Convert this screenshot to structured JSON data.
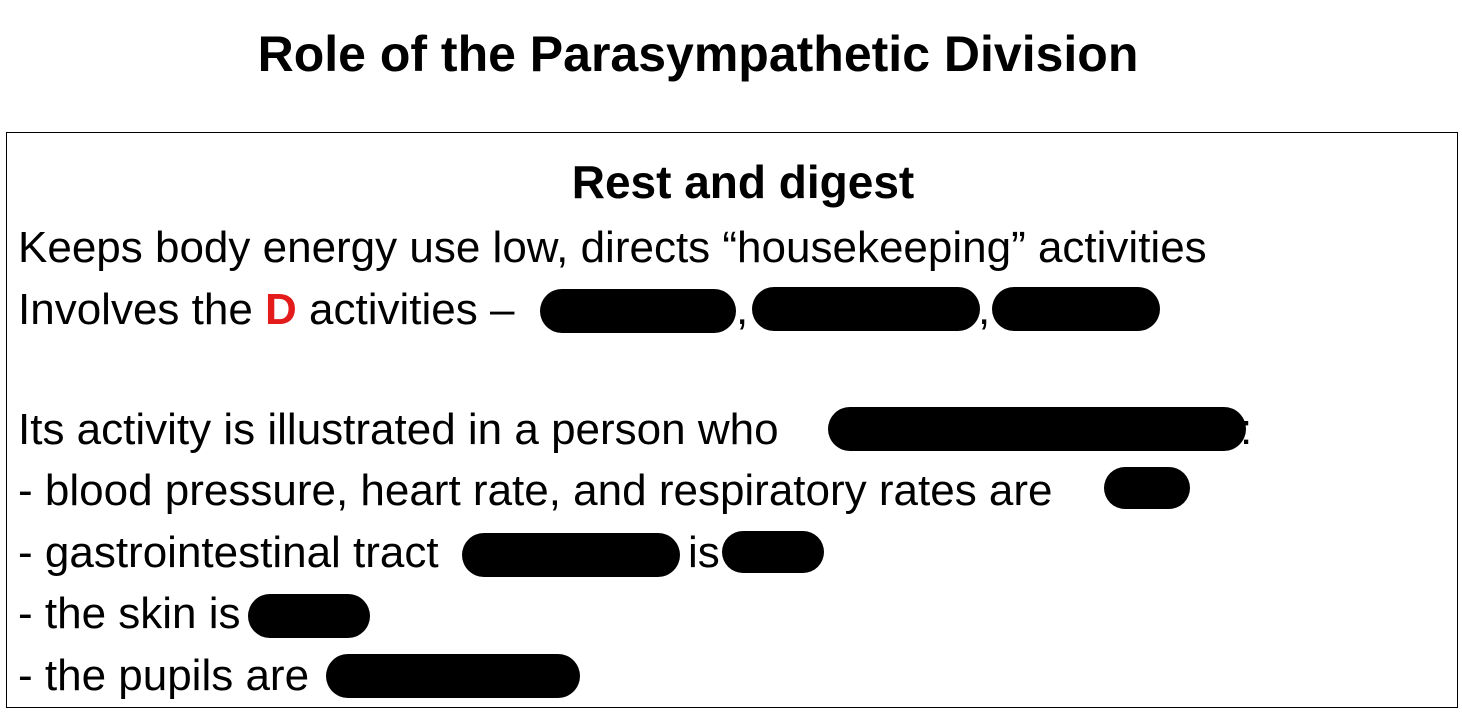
{
  "title": "Role of the Parasympathetic Division",
  "subtitle": "Rest and digest",
  "line1": "Keeps body energy use low, directs “housekeeping” activities",
  "line2": {
    "prefix": "Involves the ",
    "accent": "D",
    "accent_color": "#e31b1b",
    "suffix": " activities –",
    "comma1": ",",
    "comma2": ","
  },
  "line3": {
    "text": "Its activity is illustrated in a person who",
    "trail": ":"
  },
  "bullets": {
    "b1": "- blood pressure, heart rate, and respiratory rates are",
    "b2a": "- gastrointestinal tract",
    "b2b": "is",
    "b3": "- the skin is",
    "b4": "- the pupils are"
  }
}
